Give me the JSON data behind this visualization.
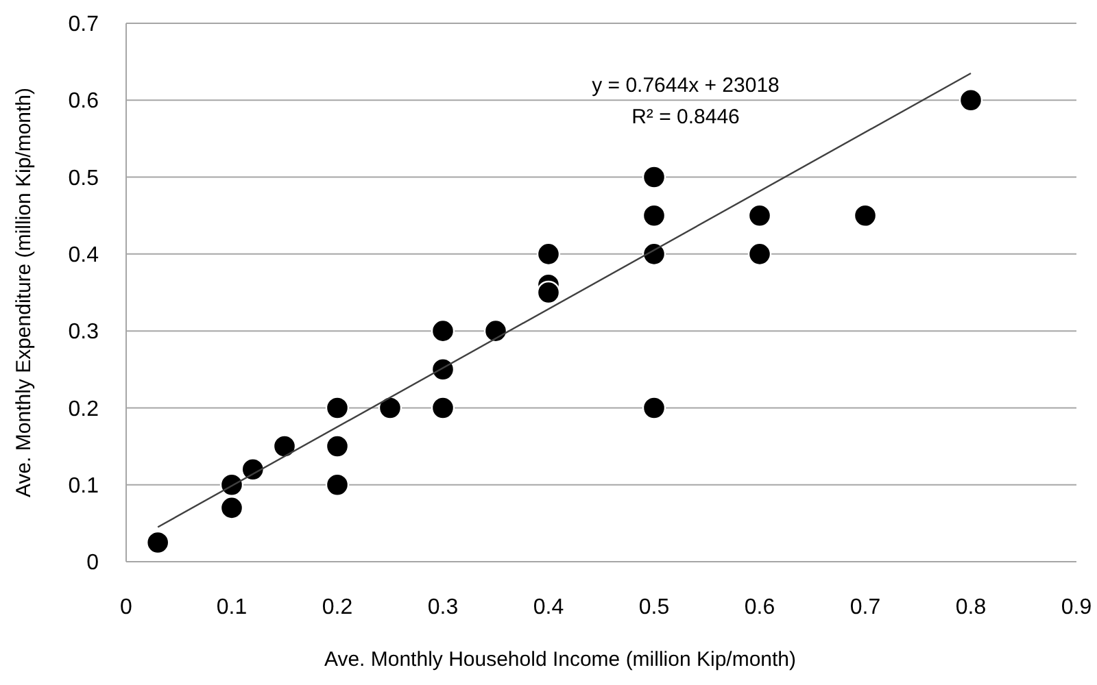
{
  "chart_data": {
    "type": "scatter",
    "xlabel": "Ave. Monthly Household Income (million Kip/month)",
    "ylabel": "Ave. Monthly Expenditure (million Kip/month)",
    "annotations": [
      "y = 0.7644x + 23018",
      "R² = 0.8446"
    ],
    "xlim": [
      0,
      0.9
    ],
    "xticks": [
      0,
      0.1,
      0.2,
      0.3,
      0.4,
      0.5,
      0.6,
      0.7,
      0.8,
      0.9
    ],
    "ylim": [
      0,
      0.7
    ],
    "yticks": [
      0,
      0.1,
      0.2,
      0.3,
      0.4,
      0.5,
      0.6,
      0.7
    ],
    "grid": "y",
    "series": [
      {
        "color": "#000000",
        "marker": "circle",
        "x": [
          0.03,
          0.1,
          0.1,
          0.12,
          0.15,
          0.2,
          0.2,
          0.2,
          0.25,
          0.3,
          0.3,
          0.3,
          0.35,
          0.4,
          0.4,
          0.4,
          0.5,
          0.5,
          0.5,
          0.5,
          0.6,
          0.6,
          0.7,
          0.8
        ],
        "values": [
          0.025,
          0.1,
          0.07,
          0.12,
          0.15,
          0.2,
          0.15,
          0.1,
          0.2,
          0.3,
          0.25,
          0.2,
          0.3,
          0.4,
          0.36,
          0.35,
          0.5,
          0.45,
          0.4,
          0.2,
          0.45,
          0.4,
          0.45,
          0.6
        ]
      },
      {
        "type": "line",
        "color": "#404040",
        "marker": "none",
        "x": [
          0.03,
          0.8
        ],
        "values": [
          0.045,
          0.635
        ]
      }
    ]
  }
}
